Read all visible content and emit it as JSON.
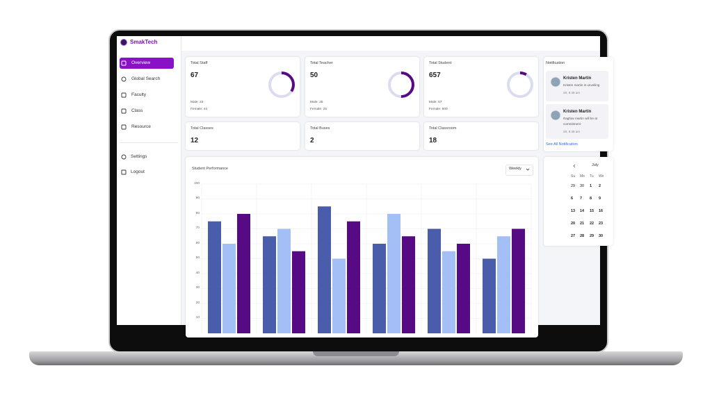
{
  "brand": "SmakTech",
  "nav": {
    "items": [
      "Overview",
      "Global Search",
      "Faculty",
      "Class",
      "Resource"
    ],
    "bottom": [
      "Settings",
      "Logout"
    ]
  },
  "stats": [
    {
      "title": "Total Staff",
      "value": 67,
      "male": {
        "value": 23,
        "label": "Male: 23"
      },
      "female": {
        "value": 44,
        "label": "Female: 44"
      }
    },
    {
      "title": "Total Teacher",
      "value": 50,
      "male": {
        "value": 25,
        "label": "Male: 25"
      },
      "female": {
        "value": 25,
        "label": "Female: 25"
      }
    },
    {
      "title": "Total Student",
      "value": 657,
      "male": {
        "value": 57,
        "label": "Male: 57"
      },
      "female": {
        "value": 600,
        "label": "Female: 600"
      }
    }
  ],
  "counts": [
    {
      "title": "Total Classes",
      "value": 12
    },
    {
      "title": "Total Buses",
      "value": 2
    },
    {
      "title": "Total Classroom",
      "value": 18
    }
  ],
  "chart": {
    "type": "bar",
    "title": "Student Performance",
    "period": "Weekly",
    "ylim": [
      0,
      100
    ],
    "yticks": [
      10,
      20,
      30,
      40,
      50,
      60,
      70,
      80,
      90,
      100
    ],
    "grid": true,
    "series": [
      {
        "color": "#4a5daa",
        "values": [
          75,
          65,
          85,
          60,
          70,
          50
        ]
      },
      {
        "color": "#a4bff6",
        "values": [
          60,
          70,
          50,
          80,
          55,
          65
        ]
      },
      {
        "color": "#560a84",
        "values": [
          80,
          55,
          75,
          65,
          60,
          70
        ]
      }
    ]
  },
  "notifications": {
    "title": "Notification",
    "link": "See All Notification",
    "items": [
      {
        "name": "Kristen Martin",
        "message": [
          "Kristen martin is unveiling"
        ],
        "time": "29, 9:48 am"
      },
      {
        "name": "Kristen Martin",
        "message": [
          "Raghav martin will be at",
          "commitment"
        ],
        "time": "29, 9:48 am"
      }
    ]
  },
  "calendar": {
    "month": "July",
    "days": [
      "Su",
      "Mo",
      "Tu",
      "We"
    ],
    "weeks": [
      [
        29,
        30,
        1,
        2
      ],
      [
        6,
        7,
        8,
        9
      ],
      [
        13,
        14,
        15,
        16
      ],
      [
        20,
        21,
        22,
        23
      ],
      [
        27,
        28,
        29,
        30
      ]
    ]
  }
}
